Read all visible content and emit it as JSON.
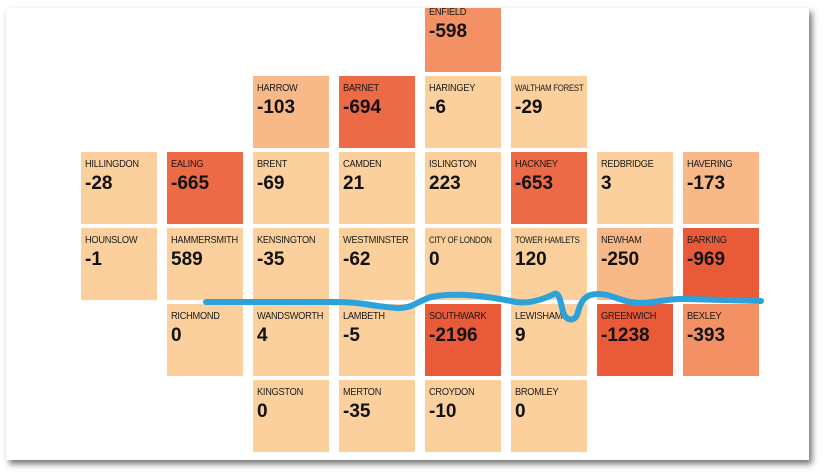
{
  "colors": {
    "light": "#fcd09c",
    "light_mid": "#f9b887",
    "mid": "#f39164",
    "dark": "#ec6a45",
    "darkest": "#e95a38",
    "river": "#2ba3da"
  },
  "boroughs": [
    {
      "id": "enfield",
      "name": "ENFIELD",
      "value": "-598",
      "col": 4,
      "row": 0,
      "shade": "mid"
    },
    {
      "id": "harrow",
      "name": "HARROW",
      "value": "-103",
      "col": 2,
      "row": 1,
      "shade": "light_mid"
    },
    {
      "id": "barnet",
      "name": "BARNET",
      "value": "-694",
      "col": 3,
      "row": 1,
      "shade": "dark"
    },
    {
      "id": "haringey",
      "name": "HARINGEY",
      "value": "-6",
      "col": 4,
      "row": 1,
      "shade": "light"
    },
    {
      "id": "waltham-forest",
      "name": "WALTHAM FOREST",
      "value": "-29",
      "col": 5,
      "row": 1,
      "shade": "light",
      "small": true
    },
    {
      "id": "hillingdon",
      "name": "HILLINGDON",
      "value": "-28",
      "col": 0,
      "row": 2,
      "shade": "light"
    },
    {
      "id": "ealing",
      "name": "EALING",
      "value": "-665",
      "col": 1,
      "row": 2,
      "shade": "dark"
    },
    {
      "id": "brent",
      "name": "BRENT",
      "value": "-69",
      "col": 2,
      "row": 2,
      "shade": "light"
    },
    {
      "id": "camden",
      "name": "CAMDEN",
      "value": "21",
      "col": 3,
      "row": 2,
      "shade": "light"
    },
    {
      "id": "islington",
      "name": "ISLINGTON",
      "value": "223",
      "col": 4,
      "row": 2,
      "shade": "light"
    },
    {
      "id": "hackney",
      "name": "HACKNEY",
      "value": "-653",
      "col": 5,
      "row": 2,
      "shade": "dark"
    },
    {
      "id": "redbridge",
      "name": "REDBRIDGE",
      "value": "3",
      "col": 6,
      "row": 2,
      "shade": "light"
    },
    {
      "id": "havering",
      "name": "HAVERING",
      "value": "-173",
      "col": 7,
      "row": 2,
      "shade": "light_mid"
    },
    {
      "id": "hounslow",
      "name": "HOUNSLOW",
      "value": "-1",
      "col": 0,
      "row": 3,
      "shade": "light"
    },
    {
      "id": "hammersmith",
      "name": "HAMMERSMITH",
      "value": "589",
      "col": 1,
      "row": 3,
      "shade": "light"
    },
    {
      "id": "kensington",
      "name": "KENSINGTON",
      "value": "-35",
      "col": 2,
      "row": 3,
      "shade": "light"
    },
    {
      "id": "westminster",
      "name": "WESTMINSTER",
      "value": "-62",
      "col": 3,
      "row": 3,
      "shade": "light"
    },
    {
      "id": "city-of-london",
      "name": "CITY OF LONDON",
      "value": "0",
      "col": 4,
      "row": 3,
      "shade": "light",
      "small": true
    },
    {
      "id": "tower-hamlets",
      "name": "TOWER HAMLETS",
      "value": "120",
      "col": 5,
      "row": 3,
      "shade": "light",
      "small": true
    },
    {
      "id": "newham",
      "name": "NEWHAM",
      "value": "-250",
      "col": 6,
      "row": 3,
      "shade": "light_mid"
    },
    {
      "id": "barking",
      "name": "BARKING",
      "value": "-969",
      "col": 7,
      "row": 3,
      "shade": "darkest"
    },
    {
      "id": "richmond",
      "name": "RICHMOND",
      "value": "0",
      "col": 1,
      "row": 4,
      "shade": "light"
    },
    {
      "id": "wandsworth",
      "name": "WANDSWORTH",
      "value": "4",
      "col": 2,
      "row": 4,
      "shade": "light"
    },
    {
      "id": "lambeth",
      "name": "LAMBETH",
      "value": "-5",
      "col": 3,
      "row": 4,
      "shade": "light"
    },
    {
      "id": "southwark",
      "name": "SOUTHWARK",
      "value": "-2196",
      "col": 4,
      "row": 4,
      "shade": "darkest"
    },
    {
      "id": "lewisham",
      "name": "LEWISHAM",
      "value": "9",
      "col": 5,
      "row": 4,
      "shade": "light"
    },
    {
      "id": "greenwich",
      "name": "GREENWICH",
      "value": "-1238",
      "col": 6,
      "row": 4,
      "shade": "darkest"
    },
    {
      "id": "bexley",
      "name": "BEXLEY",
      "value": "-393",
      "col": 7,
      "row": 4,
      "shade": "mid"
    },
    {
      "id": "kingston",
      "name": "KINGSTON",
      "value": "0",
      "col": 2,
      "row": 5,
      "shade": "light"
    },
    {
      "id": "merton",
      "name": "MERTON",
      "value": "-35",
      "col": 3,
      "row": 5,
      "shade": "light"
    },
    {
      "id": "croydon",
      "name": "CROYDON",
      "value": "-10",
      "col": 4,
      "row": 5,
      "shade": "light"
    },
    {
      "id": "bromley",
      "name": "BROMLEY",
      "value": "0",
      "col": 5,
      "row": 5,
      "shade": "light"
    }
  ]
}
